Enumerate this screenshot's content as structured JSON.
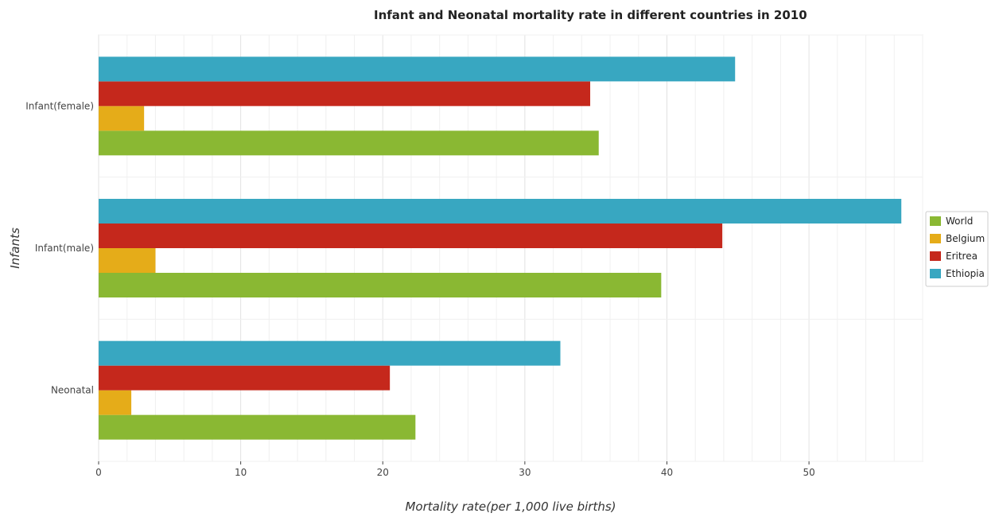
{
  "chart_data": {
    "type": "bar",
    "orientation": "horizontal",
    "title": "Infant and Neonatal mortality rate in different countries in 2010",
    "xlabel": "Mortality rate(per 1,000 live births)",
    "ylabel": "Infants",
    "categories": [
      "Infant(female)",
      "Infant(male)",
      "Neonatal"
    ],
    "xlim": [
      0,
      58
    ],
    "xticks": [
      0,
      10,
      20,
      30,
      40,
      50
    ],
    "grid": true,
    "legend_position": "right",
    "series": [
      {
        "name": "World",
        "color": "#8ab833",
        "values": [
          35.2,
          39.6,
          22.3
        ]
      },
      {
        "name": "Belgium",
        "color": "#e5ac19",
        "values": [
          3.2,
          4.0,
          2.3
        ]
      },
      {
        "name": "Eritrea",
        "color": "#c5281c",
        "values": [
          34.6,
          43.9,
          20.5
        ]
      },
      {
        "name": "Ethiopia",
        "color": "#38a7c1",
        "values": [
          44.8,
          56.5,
          32.5
        ]
      }
    ]
  }
}
